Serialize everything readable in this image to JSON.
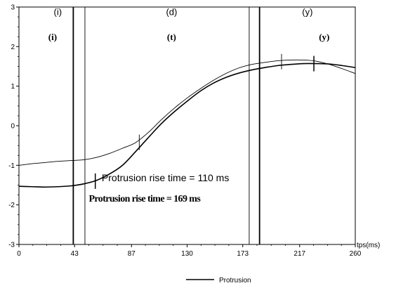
{
  "chart_data": {
    "type": "line",
    "xlabel": "tps(ms)",
    "ylabel": "",
    "xlim": [
      0,
      260
    ],
    "ylim": [
      -3,
      3
    ],
    "x_ticks": [
      0,
      43,
      87,
      130,
      173,
      217,
      260
    ],
    "y_ticks": [
      -3,
      -2,
      -1,
      0,
      1,
      2,
      3
    ],
    "grid": false,
    "legend_position": "bottom-center",
    "series": [
      {
        "name": "Protrusion",
        "style": "thick",
        "x": [
          0,
          10,
          20,
          30,
          40,
          50,
          60,
          70,
          80,
          90,
          100,
          110,
          120,
          130,
          140,
          150,
          160,
          170,
          180,
          190,
          200,
          210,
          220,
          230,
          240,
          250,
          260
        ],
        "y": [
          -1.53,
          -1.54,
          -1.55,
          -1.54,
          -1.52,
          -1.47,
          -1.38,
          -1.22,
          -1.0,
          -0.66,
          -0.3,
          0.05,
          0.35,
          0.62,
          0.87,
          1.07,
          1.22,
          1.33,
          1.41,
          1.47,
          1.52,
          1.55,
          1.57,
          1.57,
          1.56,
          1.52,
          1.47
        ]
      },
      {
        "name": "",
        "style": "thin",
        "x": [
          0,
          10,
          20,
          30,
          40,
          50,
          60,
          70,
          80,
          90,
          100,
          110,
          120,
          130,
          140,
          150,
          160,
          170,
          180,
          190,
          200,
          210,
          220,
          230,
          240,
          250,
          260
        ],
        "y": [
          -1.0,
          -0.96,
          -0.93,
          -0.9,
          -0.88,
          -0.86,
          -0.8,
          -0.7,
          -0.57,
          -0.43,
          -0.17,
          0.15,
          0.44,
          0.7,
          0.93,
          1.14,
          1.32,
          1.46,
          1.55,
          1.6,
          1.64,
          1.66,
          1.66,
          1.63,
          1.55,
          1.44,
          1.32
        ]
      }
    ],
    "vertical_lines": [
      {
        "x": 42,
        "style": "thick"
      },
      {
        "x": 51,
        "style": "thin"
      },
      {
        "x": 178,
        "style": "thin"
      },
      {
        "x": 186,
        "style": "thick"
      }
    ],
    "tick_marks": [
      {
        "x": 59,
        "y": -1.4,
        "series": "thick"
      },
      {
        "x": 93,
        "y": -0.42,
        "series": "both"
      },
      {
        "x": 203,
        "y": 1.62,
        "series": "thin"
      },
      {
        "x": 228,
        "y": 1.57,
        "series": "thick"
      }
    ],
    "region_labels": [
      {
        "text": "(i)",
        "x": 30,
        "y": 2.8,
        "font": "sans"
      },
      {
        "text": "(d)",
        "x": 118,
        "y": 2.8,
        "font": "sans"
      },
      {
        "text": "(y)",
        "x": 223,
        "y": 2.8,
        "font": "sans"
      },
      {
        "text": "(i)",
        "x": 26,
        "y": 2.17,
        "font": "serif-bold"
      },
      {
        "text": "(t)",
        "x": 118,
        "y": 2.17,
        "font": "serif-bold"
      },
      {
        "text": "(y)",
        "x": 236,
        "y": 2.17,
        "font": "serif-bold"
      }
    ],
    "annotations": [
      {
        "text": "Protrusion rise time = 110 ms",
        "x": 64,
        "y": -1.4,
        "font": "sans"
      },
      {
        "text": "Protrusion rise time = 169 ms",
        "x": 54,
        "y": -1.92,
        "font": "serif-bold"
      }
    ]
  }
}
